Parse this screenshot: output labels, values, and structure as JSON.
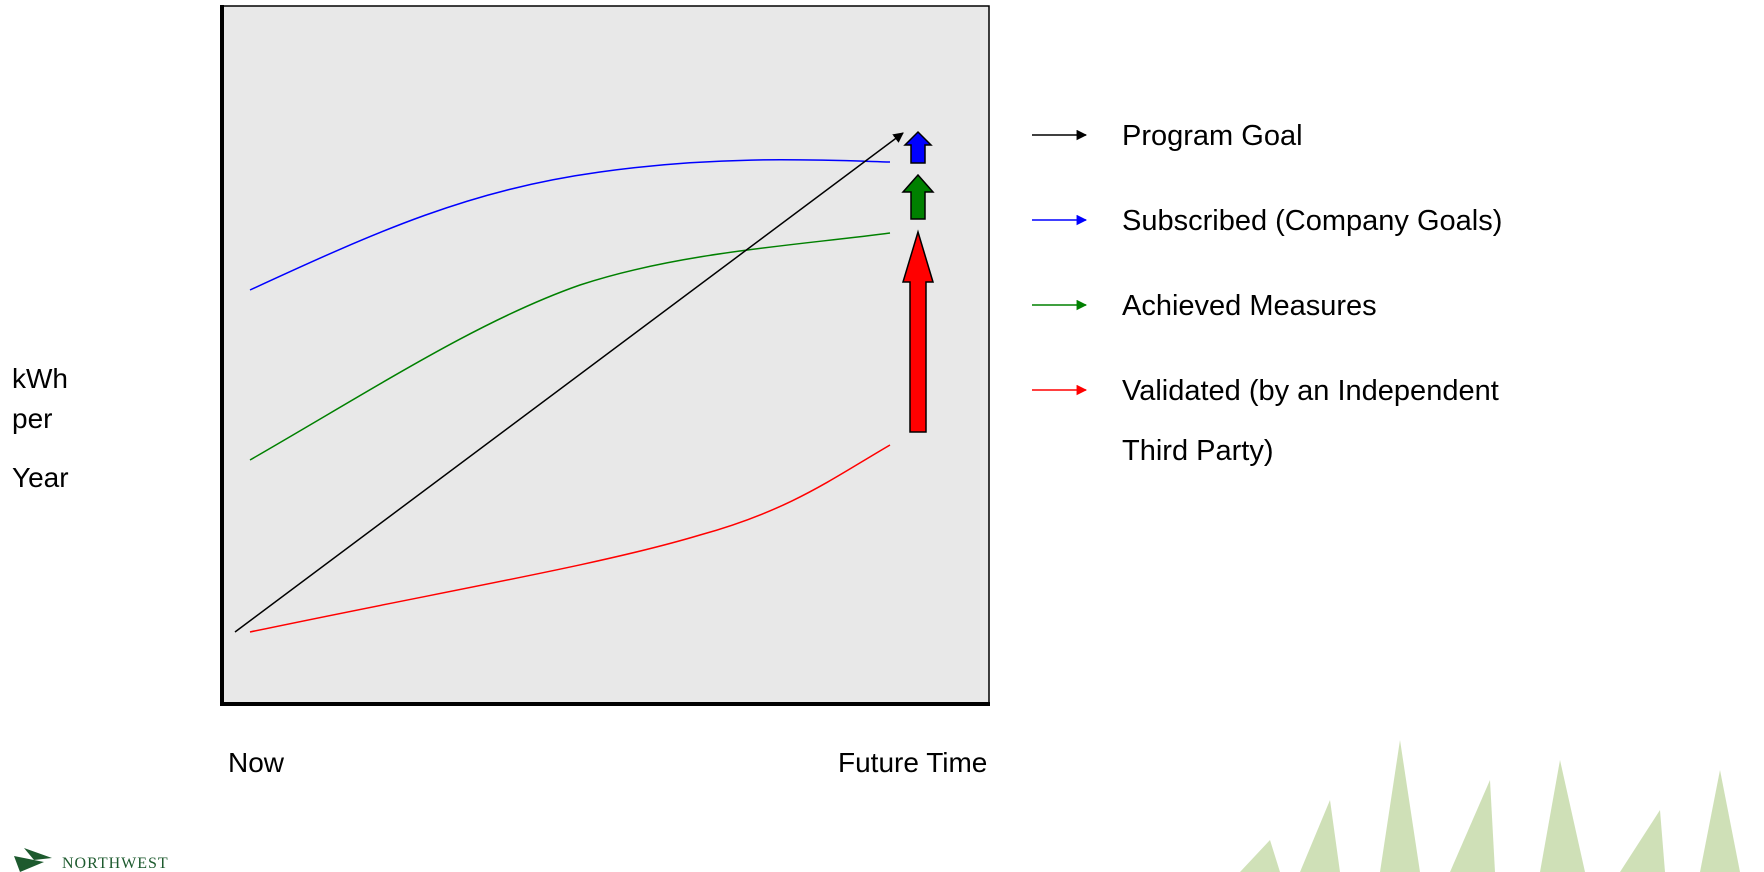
{
  "y_label": {
    "lines": [
      "kWh",
      "per",
      "Year"
    ]
  },
  "x_labels": {
    "start": "Now",
    "end": "Future Time"
  },
  "legend": {
    "items": [
      {
        "lines": [
          "Program Goal"
        ]
      },
      {
        "lines": [
          "Subscribed (Company Goals)"
        ]
      },
      {
        "lines": [
          "Achieved Measures"
        ]
      },
      {
        "lines": [
          "Validated (by an Independent",
          "Third Party)"
        ]
      }
    ]
  },
  "logo": {
    "text": "NORTHWEST"
  }
}
